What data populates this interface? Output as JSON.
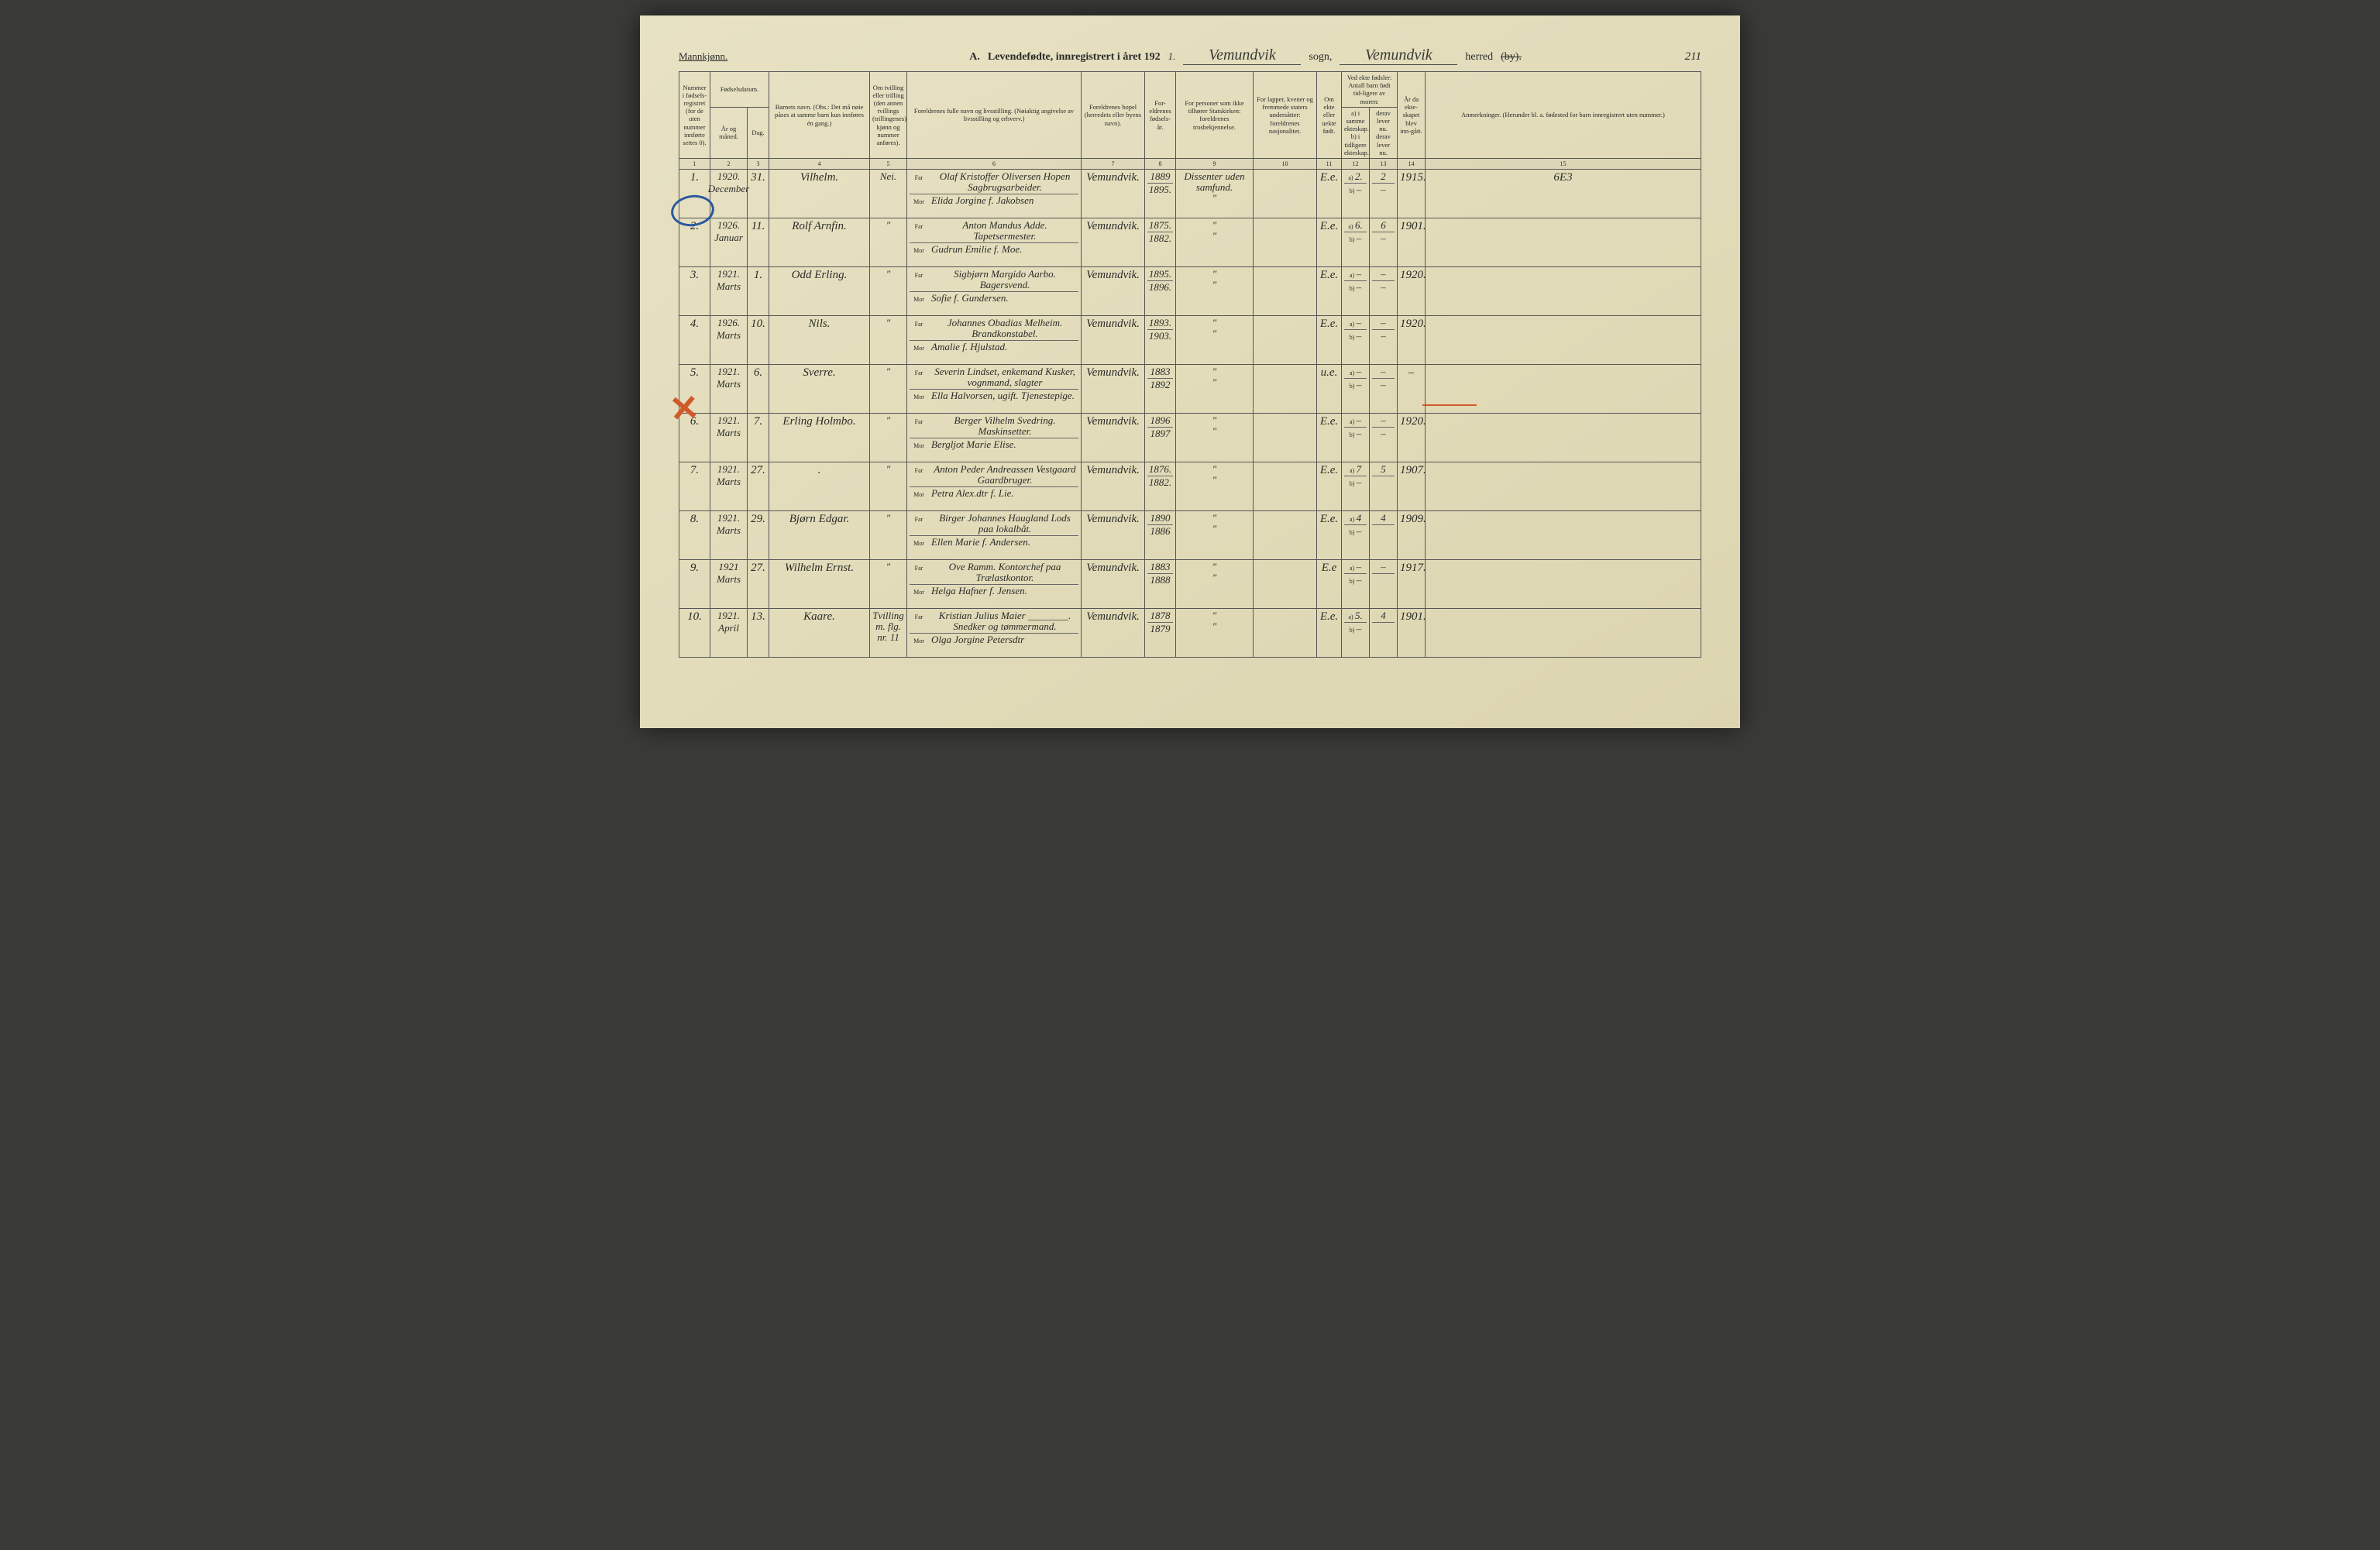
{
  "header": {
    "gender": "Mannkjønn.",
    "title_prefix": "A.",
    "title_main": "Levendefødte, innregistrert i året 192",
    "year_suffix": "1.",
    "sogn_value": "Vemundvik",
    "sogn_label": "sogn,",
    "herred_value": "Vemundvik",
    "herred_label": "herred",
    "by_struck": "(by).",
    "page_number": "211"
  },
  "column_headers": {
    "c1": "Nummer i fødsels-registret (for de uten nummer innførte settes 0).",
    "c2_top": "Fødselsdatum.",
    "c2a": "År og måned.",
    "c2b": "Dag.",
    "c4": "Barnets navn. (Obs.: Det må nøie påses at samme barn kun innføres én gang.)",
    "c5": "Om tvilling eller trilling (den annen tvillings (trillingenes) kjønn og nummer anføres).",
    "c6": "Foreldrenes fulle navn og livsstilling. (Nøiaktig angivelse av livsstilling og erhverv.)",
    "c6_far": "Far",
    "c6_mor": "Mor",
    "c7": "Foreldrenes bopel (herredets eller byens navn).",
    "c8": "For-eldrenes fødsels-år.",
    "c9": "For personer som ikke tilhører Statskirken: foreldrenes trosbekjennelse.",
    "c10": "For lapper, kvener og fremmede staters undersåtter: foreldrenes nasjonalitet.",
    "c11": "Om ekte eller uekte født.",
    "c12_top": "Ved ekte fødsler: Antall barn født tid-ligere av moren:",
    "c12a": "a) i samme ekteskap.",
    "c12b": "b) i tidligere ekteskap.",
    "c13a": "derav lever nu.",
    "c13b": "derav lever nu.",
    "c14": "År da ekte-skapet blev inn-gått.",
    "c15": "Anmerkninger. (Herunder bl. a. fødested for barn innregistrert uten nummer.)"
  },
  "column_numbers": [
    "1",
    "2",
    "3",
    "4",
    "5",
    "6",
    "7",
    "8",
    "9",
    "10",
    "11",
    "12",
    "13",
    "14",
    "15"
  ],
  "rows": [
    {
      "num": "1.",
      "year": "1920.",
      "month": "December",
      "day": "31.",
      "name": "Vilhelm.",
      "twin": "Nei.",
      "far": "Olaf Kristoffer Oliversen Hopen Sagbrugsarbeider.",
      "mor": "Elida Jorgine f. Jakobsen",
      "bopel": "Vemundvik.",
      "far_year": "1889",
      "mor_year": "1895.",
      "tros": "Dissenter uden samfund.",
      "tros2": "\"",
      "nasj": "",
      "ekte": "E.e.",
      "c12a": "2.",
      "c13a": "2",
      "c12b": "–",
      "c13b": "–",
      "marriage": "1915.",
      "remark": "6E3"
    },
    {
      "num": "2.",
      "year": "1926.",
      "month": "Januar",
      "day": "11.",
      "name": "Rolf Arnfin.",
      "twin": "\"",
      "far": "Anton Mandus Adde. Tapetsermester.",
      "mor": "Gudrun Emilie f. Moe.",
      "bopel": "Vemundvik.",
      "far_year": "1875.",
      "mor_year": "1882.",
      "tros": "\"",
      "tros2": "\"",
      "nasj": "",
      "ekte": "E.e.",
      "c12a": "6.",
      "c13a": "6",
      "c12b": "–",
      "c13b": "–",
      "marriage": "1901.",
      "remark": ""
    },
    {
      "num": "3.",
      "year": "1921.",
      "month": "Marts",
      "day": "1.",
      "name": "Odd Erling.",
      "twin": "\"",
      "far": "Sigbjørn Margido Aarbo. Bagersvend.",
      "mor": "Sofie f. Gundersen.",
      "bopel": "Vemundvik.",
      "far_year": "1895.",
      "mor_year": "1896.",
      "tros": "\"",
      "tros2": "\"",
      "nasj": "",
      "ekte": "E.e.",
      "c12a": "–",
      "c13a": "–",
      "c12b": "–",
      "c13b": "–",
      "marriage": "1920.",
      "remark": ""
    },
    {
      "num": "4.",
      "year": "1926.",
      "month": "Marts",
      "day": "10.",
      "name": "Nils.",
      "twin": "\"",
      "far": "Johannes Obadias Melheim. Brandkonstabel.",
      "mor": "Amalie f. Hjulstad.",
      "bopel": "Vemundvik.",
      "far_year": "1893.",
      "mor_year": "1903.",
      "tros": "\"",
      "tros2": "\"",
      "nasj": "",
      "ekte": "E.e.",
      "c12a": "–",
      "c13a": "–",
      "c12b": "–",
      "c13b": "–",
      "marriage": "1920.",
      "remark": ""
    },
    {
      "num": "5.",
      "year": "1921.",
      "month": "Marts",
      "day": "6.",
      "name": "Sverre.",
      "twin": "\"",
      "far": "Severin Lindset, enkemand Kusker, vognmand, slagter",
      "mor": "Ella Halvorsen, ugift. Tjenestepige.",
      "bopel": "Vemundvik.",
      "far_year": "1883",
      "mor_year": "1892",
      "tros": "\"",
      "tros2": "\"",
      "nasj": "",
      "ekte": "u.e.",
      "c12a": "–",
      "c13a": "–",
      "c12b": "–",
      "c13b": "–",
      "marriage": "–",
      "remark": ""
    },
    {
      "num": "6.",
      "year": "1921.",
      "month": "Marts",
      "day": "7.",
      "name": "Erling Holmbo.",
      "twin": "\"",
      "far": "Berger Vilhelm Svedring. Maskinsetter.",
      "mor": "Bergljot Marie Elise.",
      "bopel": "Vemundvik.",
      "far_year": "1896",
      "mor_year": "1897",
      "tros": "\"",
      "tros2": "\"",
      "nasj": "",
      "ekte": "E.e.",
      "c12a": "–",
      "c13a": "–",
      "c12b": "–",
      "c13b": "–",
      "marriage": "1920.",
      "remark": ""
    },
    {
      "num": "7.",
      "year": "1921.",
      "month": "Marts",
      "day": "27.",
      "name": ".",
      "twin": "\"",
      "far": "Anton Peder Andreassen Vestgaard Gaardbruger.",
      "mor": "Petra Alex.dtr f. Lie.",
      "bopel": "Vemundvik.",
      "far_year": "1876.",
      "mor_year": "1882.",
      "tros": "\"",
      "tros2": "\"",
      "nasj": "",
      "ekte": "E.e.",
      "c12a": "7",
      "c13a": "5",
      "c12b": "–",
      "c13b": "",
      "marriage": "1907.",
      "remark": ""
    },
    {
      "num": "8.",
      "year": "1921.",
      "month": "Marts",
      "day": "29.",
      "name": "Bjørn Edgar.",
      "twin": "\"",
      "far": "Birger Johannes Haugland Lods paa lokalbåt.",
      "mor": "Ellen Marie f. Andersen.",
      "bopel": "Vemundvik.",
      "far_year": "1890",
      "mor_year": "1886",
      "tros": "\"",
      "tros2": "\"",
      "nasj": "",
      "ekte": "E.e.",
      "c12a": "4",
      "c13a": "4",
      "c12b": "–",
      "c13b": "",
      "marriage": "1909.",
      "remark": ""
    },
    {
      "num": "9.",
      "year": "1921",
      "month": "Marts",
      "day": "27.",
      "name": "Wilhelm Ernst.",
      "twin": "\"",
      "far": "Ove Ramm. Kontorchef paa Trælastkontor.",
      "mor": "Helga Hafner f. Jensen.",
      "bopel": "Vemundvik.",
      "far_year": "1883",
      "mor_year": "1888",
      "tros": "\"",
      "tros2": "\"",
      "nasj": "",
      "ekte": "E.e",
      "c12a": "–",
      "c13a": "–",
      "c12b": "–",
      "c13b": "",
      "marriage": "1917.",
      "remark": ""
    },
    {
      "num": "10.",
      "year": "1921.",
      "month": "April",
      "day": "13.",
      "name": "Kaare.",
      "twin": "Tvilling m. flg. nr. 11",
      "far": "Kristian Julius Maier ________. Snedker og tømmermand.",
      "mor": "Olga Jorgine Petersdtr",
      "bopel": "Vemundvik.",
      "far_year": "1878",
      "mor_year": "1879",
      "tros": "\"",
      "tros2": "\"",
      "nasj": "",
      "ekte": "E.e.",
      "c12a": "5.",
      "c13a": "4",
      "c12b": "–",
      "c13b": "",
      "marriage": "1901.",
      "remark": ""
    }
  ],
  "labels": {
    "a": "a)",
    "b": "b)"
  }
}
